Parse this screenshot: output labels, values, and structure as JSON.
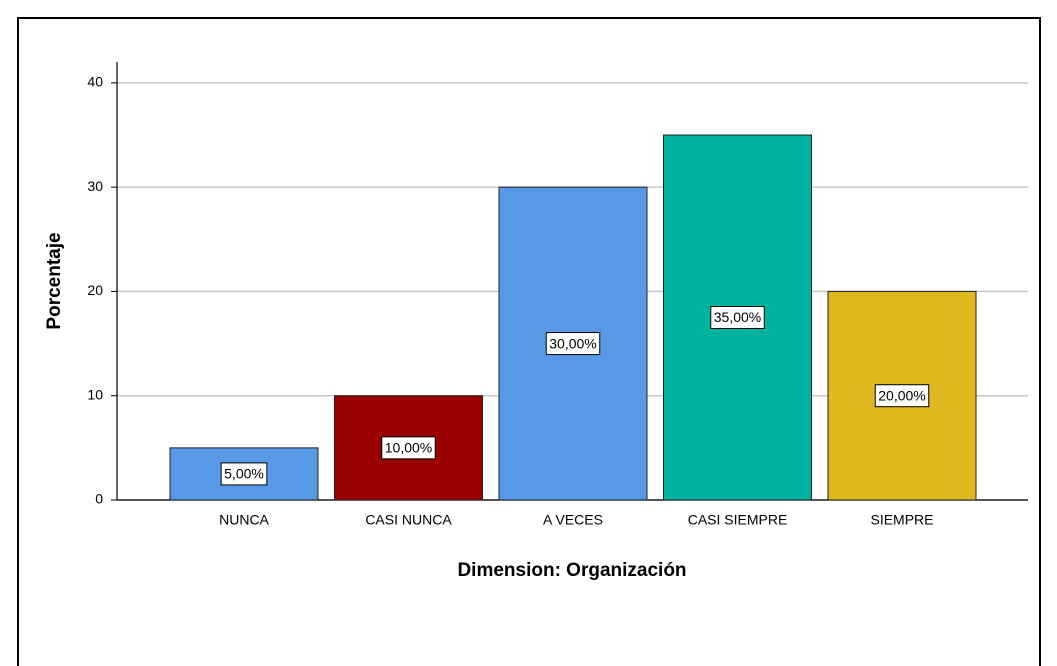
{
  "chart_data": {
    "type": "bar",
    "x_label": "Dimension: Organización",
    "y_label": "Porcentaje",
    "categories": [
      "NUNCA",
      "CASI NUNCA",
      "A VECES",
      "CASI SIEMPRE",
      "SIEMPRE"
    ],
    "values": [
      5,
      10,
      30,
      35,
      20
    ],
    "value_labels": [
      "5,00%",
      "10,00%",
      "30,00%",
      "35,00%",
      "20,00%"
    ],
    "colors": [
      "#5799e6",
      "#990000",
      "#5799e6",
      "#00b2a0",
      "#e0b81f"
    ],
    "ylim": [
      0,
      42
    ],
    "yticks": [
      0,
      10,
      20,
      30,
      40
    ],
    "grid": true
  }
}
